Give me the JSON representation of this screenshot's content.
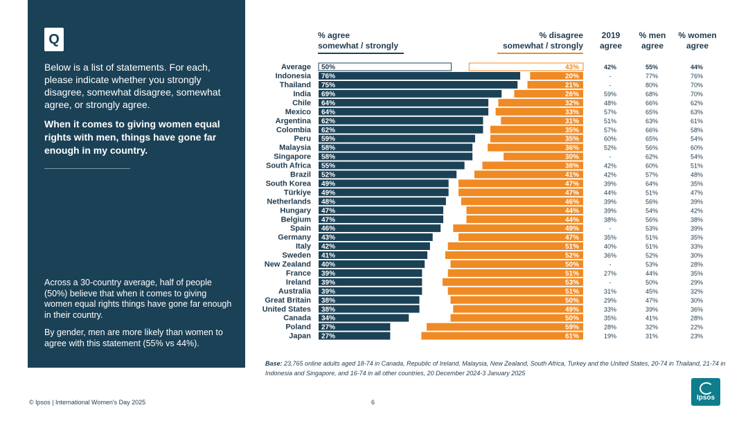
{
  "sidebar": {
    "badge": "Q",
    "question": "Below is a list of statements. For each, please indicate whether you strongly disagree, somewhat disagree, somewhat agree, or strongly agree.",
    "statement": "When it comes to giving women equal rights with men, things have gone far enough in my country.",
    "summary1": "Across a 30-country average, half of people (50%) believe that when it comes to giving women equal rights things have gone far enough in their country.",
    "summary2": "By gender, men are more likely than women to agree with this statement (55% vs 44%)."
  },
  "headers": {
    "agree_line1": "% agree",
    "agree_line2": "somewhat / strongly",
    "disagree_line1": "% disagree",
    "disagree_line2": "somewhat / strongly",
    "y2019_line1": "2019",
    "y2019_line2": "agree",
    "men_line1": "% men",
    "men_line2": "agree",
    "women_line1": "% women",
    "women_line2": "agree"
  },
  "chart_data": {
    "type": "bar",
    "categories": [
      "Average",
      "Indonesia",
      "Thailand",
      "India",
      "Chile",
      "Mexico",
      "Argentina",
      "Colombia",
      "Peru",
      "Malaysia",
      "Singapore",
      "South Africa",
      "Brazil",
      "South Korea",
      "Türkiye",
      "Netherlands",
      "Hungary",
      "Belgium",
      "Spain",
      "Germany",
      "Italy",
      "Sweden",
      "New Zealand",
      "France",
      "Ireland",
      "Australia",
      "Great Britain",
      "United States",
      "Canada",
      "Poland",
      "Japan"
    ],
    "series": [
      {
        "name": "% agree somewhat / strongly",
        "values": [
          50,
          76,
          75,
          69,
          64,
          64,
          62,
          62,
          59,
          58,
          58,
          55,
          52,
          49,
          49,
          48,
          47,
          47,
          46,
          43,
          42,
          41,
          40,
          39,
          39,
          39,
          38,
          38,
          34,
          27,
          27
        ]
      },
      {
        "name": "% disagree somewhat / strongly",
        "values": [
          43,
          20,
          21,
          26,
          32,
          33,
          31,
          35,
          35,
          36,
          30,
          38,
          41,
          47,
          47,
          46,
          44,
          44,
          49,
          47,
          51,
          52,
          50,
          51,
          53,
          51,
          50,
          49,
          50,
          59,
          61
        ]
      }
    ],
    "table": {
      "agree_2019": [
        "42%",
        "-",
        "-",
        "59%",
        "48%",
        "57%",
        "51%",
        "57%",
        "60%",
        "52%",
        "-",
        "42%",
        "42%",
        "39%",
        "44%",
        "39%",
        "39%",
        "38%",
        "-",
        "35%",
        "40%",
        "36%",
        "-",
        "27%",
        "-",
        "31%",
        "29%",
        "33%",
        "35%",
        "28%",
        "19%"
      ],
      "men_agree": [
        "55%",
        "77%",
        "80%",
        "68%",
        "66%",
        "65%",
        "63%",
        "66%",
        "65%",
        "56%",
        "62%",
        "60%",
        "57%",
        "64%",
        "51%",
        "56%",
        "54%",
        "56%",
        "53%",
        "51%",
        "51%",
        "52%",
        "53%",
        "44%",
        "50%",
        "45%",
        "47%",
        "39%",
        "41%",
        "32%",
        "31%"
      ],
      "women_agree": [
        "44%",
        "76%",
        "70%",
        "70%",
        "62%",
        "63%",
        "61%",
        "58%",
        "54%",
        "60%",
        "54%",
        "51%",
        "48%",
        "35%",
        "47%",
        "39%",
        "42%",
        "38%",
        "39%",
        "35%",
        "33%",
        "30%",
        "28%",
        "35%",
        "29%",
        "32%",
        "30%",
        "36%",
        "28%",
        "22%",
        "23%"
      ]
    },
    "colors": {
      "agree": "#1b4156",
      "disagree": "#f08a24"
    }
  },
  "base_label": "Base:",
  "base_text": "23,765 online adults aged 18-74 in Canada, Republic of Ireland, Malaysia, New Zealand, South Africa, Turkey and the United States, 20-74 in Thailand, 21-74 in Indonesia and Singapore, and 16-74 in all other countries, 20 December 2024-3 January 2025",
  "footer": "© Ipsos | International Women's Day 2025",
  "page_number": "6",
  "logo_text": "Ipsos"
}
